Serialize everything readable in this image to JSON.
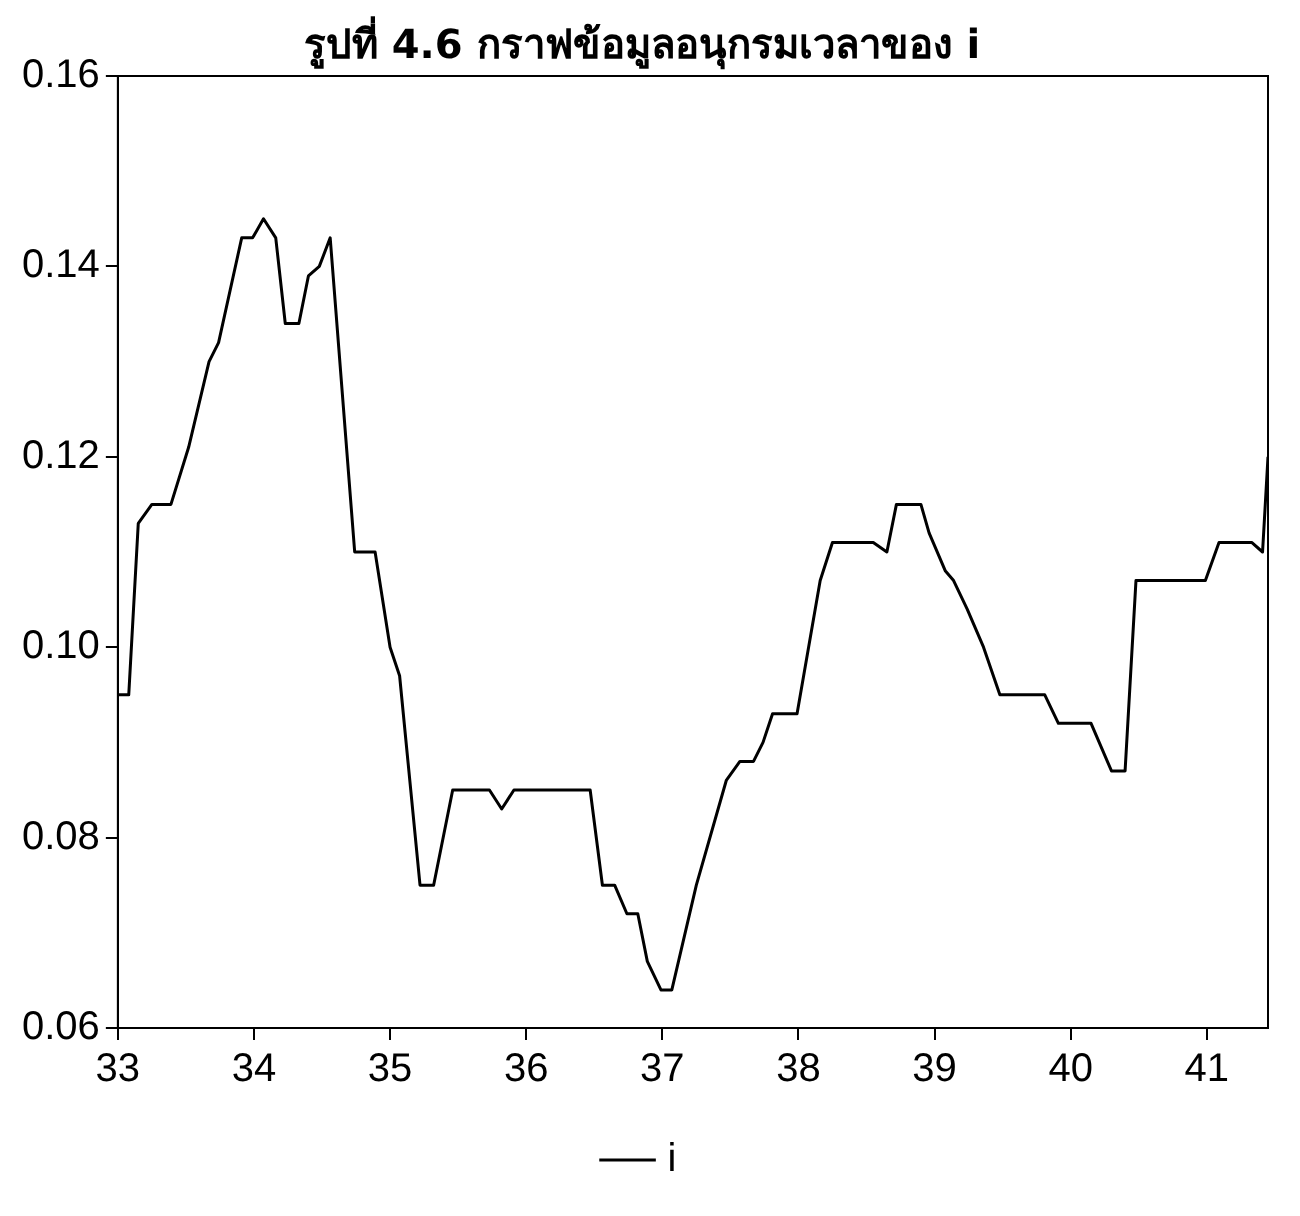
{
  "chart_data": {
    "type": "line",
    "title": "รูปที่ 4.6 กราฟข้อมูลอนุกรมเวลาของ i",
    "series": [
      {
        "name": "i",
        "color": "#000000",
        "x": [
          33,
          33.08,
          33.15,
          33.25,
          33.39,
          33.52,
          33.67,
          33.74,
          33.91,
          33.99,
          34.07,
          34.16,
          34.23,
          34.33,
          34.4,
          34.48,
          34.56,
          34.74,
          34.89,
          35,
          35.07,
          35.22,
          35.32,
          35.46,
          35.73,
          35.82,
          35.91,
          36.47,
          36.56,
          36.65,
          36.74,
          36.82,
          36.89,
          36.99,
          37.07,
          37.25,
          37.47,
          37.57,
          37.67,
          37.74,
          37.81,
          37.99,
          38.16,
          38.25,
          38.55,
          38.65,
          38.72,
          38.9,
          38.96,
          39.08,
          39.14,
          39.24,
          39.36,
          39.48,
          39.81,
          39.91,
          40.15,
          40.3,
          40.4,
          40.48,
          40.99,
          41.09,
          41.33,
          41.41,
          41.45
        ],
        "values": [
          0.095,
          0.095,
          0.113,
          0.115,
          0.115,
          0.121,
          0.13,
          0.132,
          0.143,
          0.143,
          0.145,
          0.143,
          0.134,
          0.134,
          0.139,
          0.14,
          0.143,
          0.11,
          0.11,
          0.1,
          0.097,
          0.075,
          0.075,
          0.085,
          0.085,
          0.083,
          0.085,
          0.085,
          0.075,
          0.075,
          0.072,
          0.072,
          0.067,
          0.064,
          0.064,
          0.075,
          0.086,
          0.088,
          0.088,
          0.09,
          0.093,
          0.093,
          0.107,
          0.111,
          0.111,
          0.11,
          0.115,
          0.115,
          0.112,
          0.108,
          0.107,
          0.104,
          0.1,
          0.095,
          0.095,
          0.092,
          0.092,
          0.087,
          0.087,
          0.107,
          0.107,
          0.111,
          0.111,
          0.11,
          0.12
        ]
      }
    ],
    "xlim": [
      33,
      41.45
    ],
    "xticks": [
      33,
      34,
      35,
      36,
      37,
      38,
      39,
      40,
      41
    ],
    "ylim": [
      0.06,
      0.16
    ],
    "yticks": [
      {
        "value": 0.06,
        "label": "0.06"
      },
      {
        "value": 0.08,
        "label": "0.08"
      },
      {
        "value": 0.1,
        "label": "0.10"
      },
      {
        "value": 0.12,
        "label": "0.12"
      },
      {
        "value": 0.14,
        "label": "0.14"
      },
      {
        "value": 0.16,
        "label": "0.16"
      }
    ],
    "grid": false,
    "legend": "bottom",
    "marker": "none",
    "line_style": "solid"
  }
}
